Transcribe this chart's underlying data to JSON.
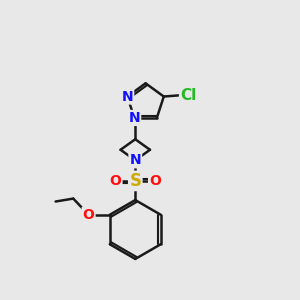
{
  "background_color": "#e8e8e8",
  "bond_color": "#1a1a1a",
  "bond_width": 1.8,
  "atom_colors": {
    "N": "#1010ff",
    "O": "#ff1010",
    "S": "#ccaa00",
    "Cl": "#22bb22",
    "C": "#1a1a1a"
  },
  "font_size_atom": 10
}
